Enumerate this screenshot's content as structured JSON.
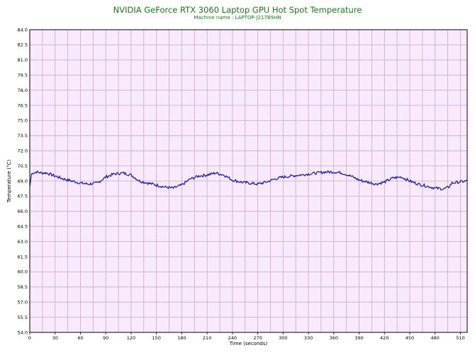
{
  "title": "NVIDIA GeForce RTX 3060 Laptop GPU Hot Spot Temperature",
  "subtitle": "Machine name : LAPTOP-J217B9HN",
  "colors": {
    "title": "#1a7a1a",
    "plot_bg": "#f8eafc",
    "grid": "#c6a8c8",
    "line": "#0000c8"
  },
  "chart_data": {
    "type": "line",
    "title": "NVIDIA GeForce RTX 3060 Laptop GPU Hot Spot Temperature",
    "subtitle": "Machine name : LAPTOP-J217B9HN",
    "xlabel": "Time (seconds)",
    "ylabel": "Temperature (°C)",
    "xlim": [
      0,
      518
    ],
    "ylim": [
      54.0,
      84.0
    ],
    "grid": true,
    "x_ticks": [
      0,
      30,
      60,
      90,
      120,
      150,
      180,
      210,
      240,
      270,
      300,
      330,
      360,
      390,
      420,
      450,
      480,
      510
    ],
    "y_ticks": [
      "54.0",
      "55.5",
      "57.0",
      "58.5",
      "60.0",
      "61.5",
      "63.0",
      "64.5",
      "66.0",
      "67.5",
      "69.0",
      "70.5",
      "72.0",
      "73.5",
      "75.0",
      "76.5",
      "78.0",
      "79.5",
      "81.0",
      "82.5",
      "84.0"
    ],
    "series": [
      {
        "x": [
          0,
          2,
          4,
          8,
          14,
          20,
          30,
          40,
          50,
          60,
          70,
          80,
          90,
          100,
          110,
          120,
          130,
          140,
          150,
          160,
          170,
          180,
          190,
          200,
          210,
          220,
          230,
          240,
          250,
          260,
          270,
          280,
          290,
          300,
          310,
          320,
          330,
          340,
          350,
          360,
          370,
          380,
          390,
          400,
          410,
          420,
          430,
          440,
          450,
          460,
          470,
          480,
          490,
          496,
          500,
          508,
          518
        ],
        "y": [
          68.4,
          69.7,
          69.8,
          69.9,
          69.8,
          69.8,
          69.5,
          69.2,
          69.0,
          68.8,
          68.7,
          68.8,
          69.4,
          69.7,
          69.8,
          69.6,
          69.0,
          68.8,
          68.6,
          68.4,
          68.3,
          68.6,
          69.2,
          69.5,
          69.6,
          69.8,
          69.6,
          69.1,
          68.9,
          68.8,
          68.7,
          68.9,
          69.2,
          69.4,
          69.5,
          69.6,
          69.7,
          69.8,
          69.9,
          69.9,
          69.8,
          69.5,
          69.1,
          68.9,
          68.7,
          68.9,
          69.3,
          69.4,
          69.0,
          68.7,
          68.5,
          68.3,
          68.2,
          68.4,
          68.8,
          68.9,
          69.0
        ]
      }
    ]
  }
}
